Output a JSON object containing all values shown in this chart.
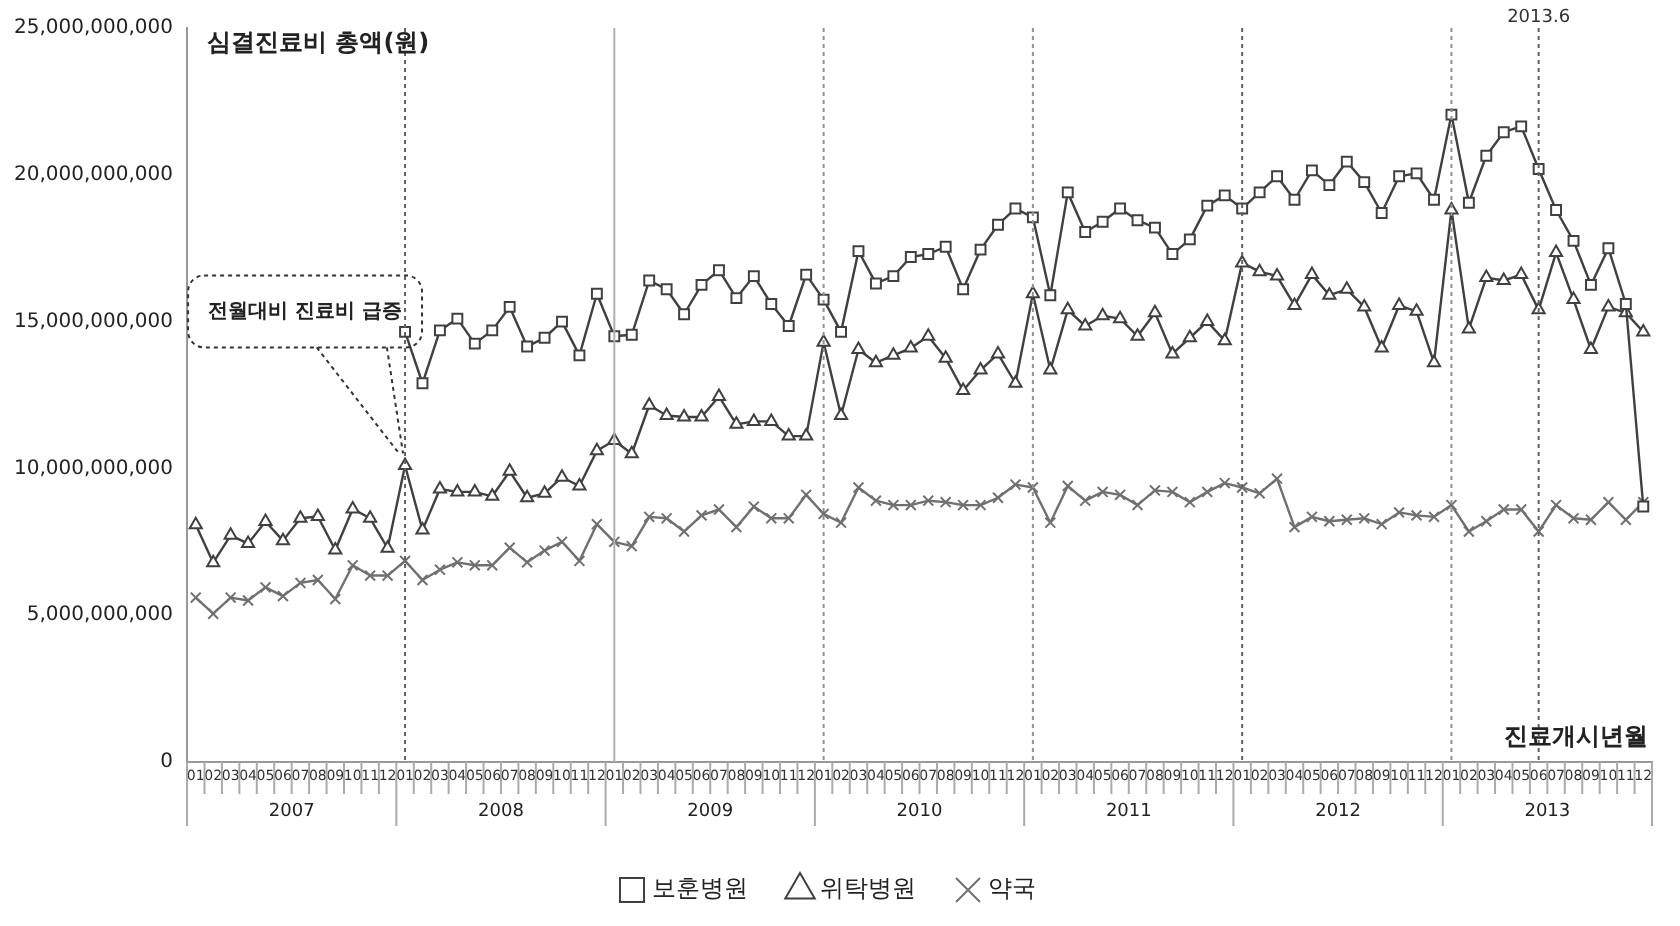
{
  "chart_data": {
    "type": "line",
    "ylabel": "심결진료비 총액(원)",
    "xlabel": "진료개시년월",
    "x": [
      "2007-01",
      "2007-02",
      "2007-03",
      "2007-04",
      "2007-05",
      "2007-06",
      "2007-07",
      "2007-08",
      "2007-09",
      "2007-10",
      "2007-11",
      "2007-12",
      "2008-01",
      "2008-02",
      "2008-03",
      "2008-04",
      "2008-05",
      "2008-06",
      "2008-07",
      "2008-08",
      "2008-09",
      "2008-10",
      "2008-11",
      "2008-12",
      "2009-01",
      "2009-02",
      "2009-03",
      "2009-04",
      "2009-05",
      "2009-06",
      "2009-07",
      "2009-08",
      "2009-09",
      "2009-10",
      "2009-11",
      "2009-12",
      "2010-01",
      "2010-02",
      "2010-03",
      "2010-04",
      "2010-05",
      "2010-06",
      "2010-07",
      "2010-08",
      "2010-09",
      "2010-10",
      "2010-11",
      "2010-12",
      "2011-01",
      "2011-02",
      "2011-03",
      "2011-04",
      "2011-05",
      "2011-06",
      "2011-07",
      "2011-08",
      "2011-09",
      "2011-10",
      "2011-11",
      "2011-12",
      "2012-01",
      "2012-02",
      "2012-03",
      "2012-04",
      "2012-05",
      "2012-06",
      "2012-07",
      "2012-08",
      "2012-09",
      "2012-10",
      "2012-11",
      "2012-12",
      "2013-01",
      "2013-02",
      "2013-03",
      "2013-04",
      "2013-05",
      "2013-06",
      "2013-07",
      "2013-08",
      "2013-09",
      "2013-10",
      "2013-11",
      "2013-12"
    ],
    "xticks": [
      {
        "value": "2007-01",
        "label": "01"
      },
      {
        "value": "2007-02",
        "label": "02"
      },
      {
        "value": "2007-03",
        "label": "03"
      },
      {
        "value": "2007-04",
        "label": "04"
      },
      {
        "value": "2007-05",
        "label": "05"
      },
      {
        "value": "2007-06",
        "label": "06"
      },
      {
        "value": "2007-07",
        "label": "07"
      },
      {
        "value": "2007-08",
        "label": "08"
      },
      {
        "value": "2007-09",
        "label": "09"
      },
      {
        "value": "2007-10",
        "label": "10"
      },
      {
        "value": "2007-11",
        "label": "11"
      },
      {
        "value": "2007-12",
        "label": "12"
      },
      {
        "value": "2008-01",
        "label": "01"
      },
      {
        "value": "2008-02",
        "label": "02"
      },
      {
        "value": "2008-03",
        "label": "03"
      },
      {
        "value": "2008-04",
        "label": "04"
      },
      {
        "value": "2008-05",
        "label": "05"
      },
      {
        "value": "2008-06",
        "label": "06"
      },
      {
        "value": "2008-07",
        "label": "07"
      },
      {
        "value": "2008-08",
        "label": "08"
      },
      {
        "value": "2008-09",
        "label": "09"
      },
      {
        "value": "2008-10",
        "label": "10"
      },
      {
        "value": "2008-11",
        "label": "11"
      },
      {
        "value": "2008-12",
        "label": "12"
      },
      {
        "value": "2009-01",
        "label": "01"
      },
      {
        "value": "2009-02",
        "label": "02"
      },
      {
        "value": "2009-03",
        "label": "03"
      },
      {
        "value": "2009-04",
        "label": "04"
      },
      {
        "value": "2009-05",
        "label": "05"
      },
      {
        "value": "2009-06",
        "label": "06"
      },
      {
        "value": "2009-07",
        "label": "07"
      },
      {
        "value": "2009-08",
        "label": "08"
      },
      {
        "value": "2009-09",
        "label": "09"
      },
      {
        "value": "2009-10",
        "label": "10"
      },
      {
        "value": "2009-11",
        "label": "11"
      },
      {
        "value": "2009-12",
        "label": "12"
      },
      {
        "value": "2010-01",
        "label": "01"
      },
      {
        "value": "2010-02",
        "label": "02"
      },
      {
        "value": "2010-03",
        "label": "03"
      },
      {
        "value": "2010-04",
        "label": "04"
      },
      {
        "value": "2010-05",
        "label": "05"
      },
      {
        "value": "2010-06",
        "label": "06"
      },
      {
        "value": "2010-07",
        "label": "07"
      },
      {
        "value": "2010-08",
        "label": "08"
      },
      {
        "value": "2010-09",
        "label": "09"
      },
      {
        "value": "2010-10",
        "label": "10"
      },
      {
        "value": "2010-11",
        "label": "11"
      },
      {
        "value": "2010-12",
        "label": "12"
      },
      {
        "value": "2011-01",
        "label": "01"
      },
      {
        "value": "2011-02",
        "label": "02"
      },
      {
        "value": "2011-03",
        "label": "03"
      },
      {
        "value": "2011-04",
        "label": "04"
      },
      {
        "value": "2011-05",
        "label": "05"
      },
      {
        "value": "2011-06",
        "label": "06"
      },
      {
        "value": "2011-07",
        "label": "07"
      },
      {
        "value": "2011-08",
        "label": "08"
      },
      {
        "value": "2011-09",
        "label": "09"
      },
      {
        "value": "2011-10",
        "label": "10"
      },
      {
        "value": "2011-11",
        "label": "11"
      },
      {
        "value": "2011-12",
        "label": "12"
      },
      {
        "value": "2012-01",
        "label": "01"
      },
      {
        "value": "2012-02",
        "label": "02"
      },
      {
        "value": "2012-03",
        "label": "03"
      },
      {
        "value": "2012-04",
        "label": "04"
      },
      {
        "value": "2012-05",
        "label": "05"
      },
      {
        "value": "2012-06",
        "label": "06"
      },
      {
        "value": "2012-07",
        "label": "07"
      },
      {
        "value": "2012-08",
        "label": "08"
      },
      {
        "value": "2012-09",
        "label": "09"
      },
      {
        "value": "2012-10",
        "label": "10"
      },
      {
        "value": "2012-11",
        "label": "11"
      },
      {
        "value": "2012-12",
        "label": "12"
      },
      {
        "value": "2013-01",
        "label": "01"
      },
      {
        "value": "2013-02",
        "label": "02"
      },
      {
        "value": "2013-03",
        "label": "03"
      },
      {
        "value": "2013-04",
        "label": "04"
      },
      {
        "value": "2013-05",
        "label": "05"
      },
      {
        "value": "2013-06",
        "label": "06"
      },
      {
        "value": "2013-07",
        "label": "07"
      },
      {
        "value": "2013-08",
        "label": "08"
      },
      {
        "value": "2013-09",
        "label": "09"
      },
      {
        "value": "2013-10",
        "label": "10"
      },
      {
        "value": "2013-11",
        "label": "11"
      },
      {
        "value": "2013-12",
        "label": "12"
      }
    ],
    "ylim": [
      0,
      25000000000
    ],
    "yticks": [
      {
        "value": 0,
        "label": "0"
      },
      {
        "value": 5000000000,
        "label": "5,000,000,000"
      },
      {
        "value": 10000000000,
        "label": "10,000,000,000"
      },
      {
        "value": 15000000000,
        "label": "15,000,000,000"
      },
      {
        "value": 20000000000,
        "label": "20,000,000,000"
      },
      {
        "value": 25000000000,
        "label": "25,000,000,000"
      }
    ],
    "series": [
      {
        "name": "보훈병원",
        "color": "#404040",
        "marker": "square",
        "values": [
          null,
          null,
          null,
          null,
          null,
          null,
          null,
          null,
          null,
          null,
          null,
          null,
          14650000000.0,
          12900000000.0,
          14700000000.0,
          15100000000.0,
          14250000000.0,
          14700000000.0,
          15500000000.0,
          14150000000.0,
          14450000000.0,
          15000000000.0,
          13850000000.0,
          15950000000.0,
          14500000000.0,
          14550000000.0,
          16400000000.0,
          16100000000.0,
          15250000000.0,
          16250000000.0,
          16750000000.0,
          15800000000.0,
          16550000000.0,
          15600000000.0,
          14850000000.0,
          16600000000.0,
          15750000000.0,
          14650000000.0,
          17400000000.0,
          16300000000.0,
          16550000000.0,
          17200000000.0,
          17300000000.0,
          17550000000.0,
          16100000000.0,
          17450000000.0,
          18300000000.0,
          18850000000.0,
          18550000000.0,
          15900000000.0,
          19400000000.0,
          18050000000.0,
          18400000000.0,
          18850000000.0,
          18450000000.0,
          18200000000.0,
          17300000000.0,
          17800000000.0,
          18950000000.0,
          19300000000.0,
          18850000000.0,
          19400000000.0,
          19950000000.0,
          19150000000.0,
          20150000000.0,
          19650000000.0,
          20450000000.0,
          19750000000.0,
          18700000000.0,
          19950000000.0,
          20050000000.0,
          19150000000.0,
          22050000000.0,
          19050000000.0,
          20650000000.0,
          21450000000.0,
          21650000000.0,
          20200000000.0,
          18800000000.0,
          17750000000.0,
          16250000000.0,
          17500000000.0,
          15600000000.0,
          8700000000.0
        ]
      },
      {
        "name": "위탁병원",
        "color": "#404040",
        "marker": "triangle",
        "values": [
          8080000000.0,
          6790000000.0,
          7720000000.0,
          7440000000.0,
          8190000000.0,
          7540000000.0,
          8300000000.0,
          8360000000.0,
          7220000000.0,
          8620000000.0,
          8300000000.0,
          7280000000.0,
          10100000000.0,
          7900000000.0,
          9300000000.0,
          9200000000.0,
          9200000000.0,
          9050000000.0,
          9900000000.0,
          9000000000.0,
          9150000000.0,
          9700000000.0,
          9400000000.0,
          10600000000.0,
          10950000000.0,
          10500000000.0,
          12150000000.0,
          11800000000.0,
          11750000000.0,
          11750000000.0,
          12450000000.0,
          11500000000.0,
          11600000000.0,
          11600000000.0,
          11100000000.0,
          11100000000.0,
          14300000000.0,
          11800000000.0,
          14050000000.0,
          13600000000.0,
          13850000000.0,
          14100000000.0,
          14500000000.0,
          13750000000.0,
          12650000000.0,
          13350000000.0,
          13900000000.0,
          12900000000.0,
          15950000000.0,
          13350000000.0,
          15400000000.0,
          14850000000.0,
          15200000000.0,
          15100000000.0,
          14500000000.0,
          15300000000.0,
          13900000000.0,
          14450000000.0,
          15000000000.0,
          14350000000.0,
          17000000000.0,
          16700000000.0,
          16550000000.0,
          15550000000.0,
          16600000000.0,
          15900000000.0,
          16100000000.0,
          15500000000.0,
          14100000000.0,
          15550000000.0,
          15350000000.0,
          13600000000.0,
          18800000000.0,
          14750000000.0,
          16500000000.0,
          16400000000.0,
          16600000000.0,
          15400000000.0,
          17350000000.0,
          15750000000.0,
          14050000000.0,
          15500000000.0,
          15300000000.0,
          14650000000.0
        ]
      },
      {
        "name": "약국",
        "color": "#707070",
        "marker": "cross",
        "values": [
          5600000000.0,
          5050000000.0,
          5600000000.0,
          5500000000.0,
          5950000000.0,
          5650000000.0,
          6100000000.0,
          6200000000.0,
          5550000000.0,
          6700000000.0,
          6350000000.0,
          6350000000.0,
          6850000000.0,
          6200000000.0,
          6550000000.0,
          6800000000.0,
          6700000000.0,
          6700000000.0,
          7300000000.0,
          6800000000.0,
          7200000000.0,
          7500000000.0,
          6850000000.0,
          8100000000.0,
          7500000000.0,
          7350000000.0,
          8350000000.0,
          8300000000.0,
          7850000000.0,
          8400000000.0,
          8600000000.0,
          8000000000.0,
          8700000000.0,
          8300000000.0,
          8300000000.0,
          9100000000.0,
          8450000000.0,
          8150000000.0,
          9350000000.0,
          8900000000.0,
          8750000000.0,
          8750000000.0,
          8900000000.0,
          8850000000.0,
          8750000000.0,
          8750000000.0,
          9000000000.0,
          9450000000.0,
          9350000000.0,
          8150000000.0,
          9400000000.0,
          8900000000.0,
          9200000000.0,
          9100000000.0,
          8750000000.0,
          9250000000.0,
          9200000000.0,
          8850000000.0,
          9200000000.0,
          9500000000.0,
          9350000000.0,
          9150000000.0,
          9650000000.0,
          8000000000.0,
          8350000000.0,
          8200000000.0,
          8250000000.0,
          8300000000.0,
          8100000000.0,
          8500000000.0,
          8400000000.0,
          8350000000.0,
          8750000000.0,
          7850000000.0,
          8200000000.0,
          8600000000.0,
          8600000000.0,
          7850000000.0,
          8750000000.0,
          8300000000.0,
          8250000000.0,
          8850000000.0,
          8250000000.0,
          8850000000.0
        ]
      }
    ],
    "ref_lines": [
      {
        "axis": "x",
        "value": "2008-01",
        "color": "#606060",
        "line_style": "dotted"
      },
      {
        "axis": "x",
        "value": "2009-01",
        "color": "#b0b0b0",
        "line_style": "solid"
      },
      {
        "axis": "x",
        "value": "2010-01",
        "color": "#909090",
        "line_style": "dotted"
      },
      {
        "axis": "x",
        "value": "2011-01",
        "color": "#909090",
        "line_style": "dotted"
      },
      {
        "axis": "x",
        "value": "2012-01",
        "color": "#606060",
        "line_style": "dotted"
      },
      {
        "axis": "x",
        "value": "2013-01",
        "color": "#909090",
        "line_style": "dotted"
      },
      {
        "axis": "x",
        "value": "2013-06",
        "color": "#606060",
        "line_style": "dotted",
        "label": "2013.6"
      }
    ],
    "annotations": [
      {
        "text": "전월대비 진료비 급증",
        "x": "2008-01",
        "y": 10100000000.0
      },
      "2007",
      "2008",
      "2009",
      "2010",
      "2011",
      "2012",
      "2013"
    ],
    "xlim": [
      "2006-12-16",
      "2013-12-16"
    ],
    "grid": false,
    "legend": "bottom"
  }
}
